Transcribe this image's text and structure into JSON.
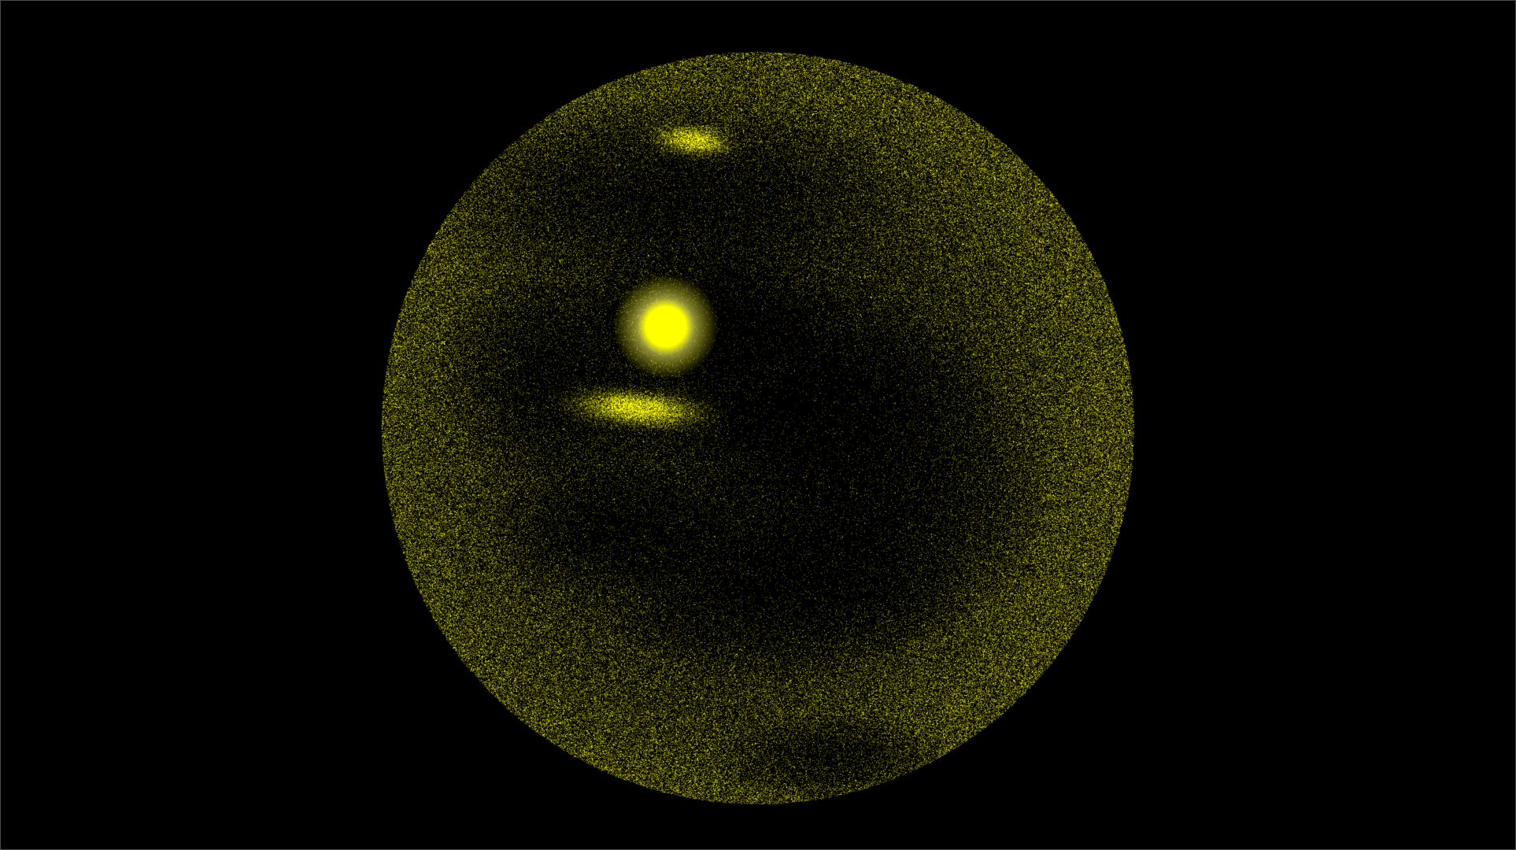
{
  "scene": {
    "background_color": "#000000",
    "frame_border_color": "#4a4a4a",
    "particle_color": "#e6e600",
    "core_color": "#ffff00",
    "glow_color": "#ffff66",
    "elements": [
      "particle-sphere",
      "bright-core",
      "faint-bands"
    ]
  }
}
